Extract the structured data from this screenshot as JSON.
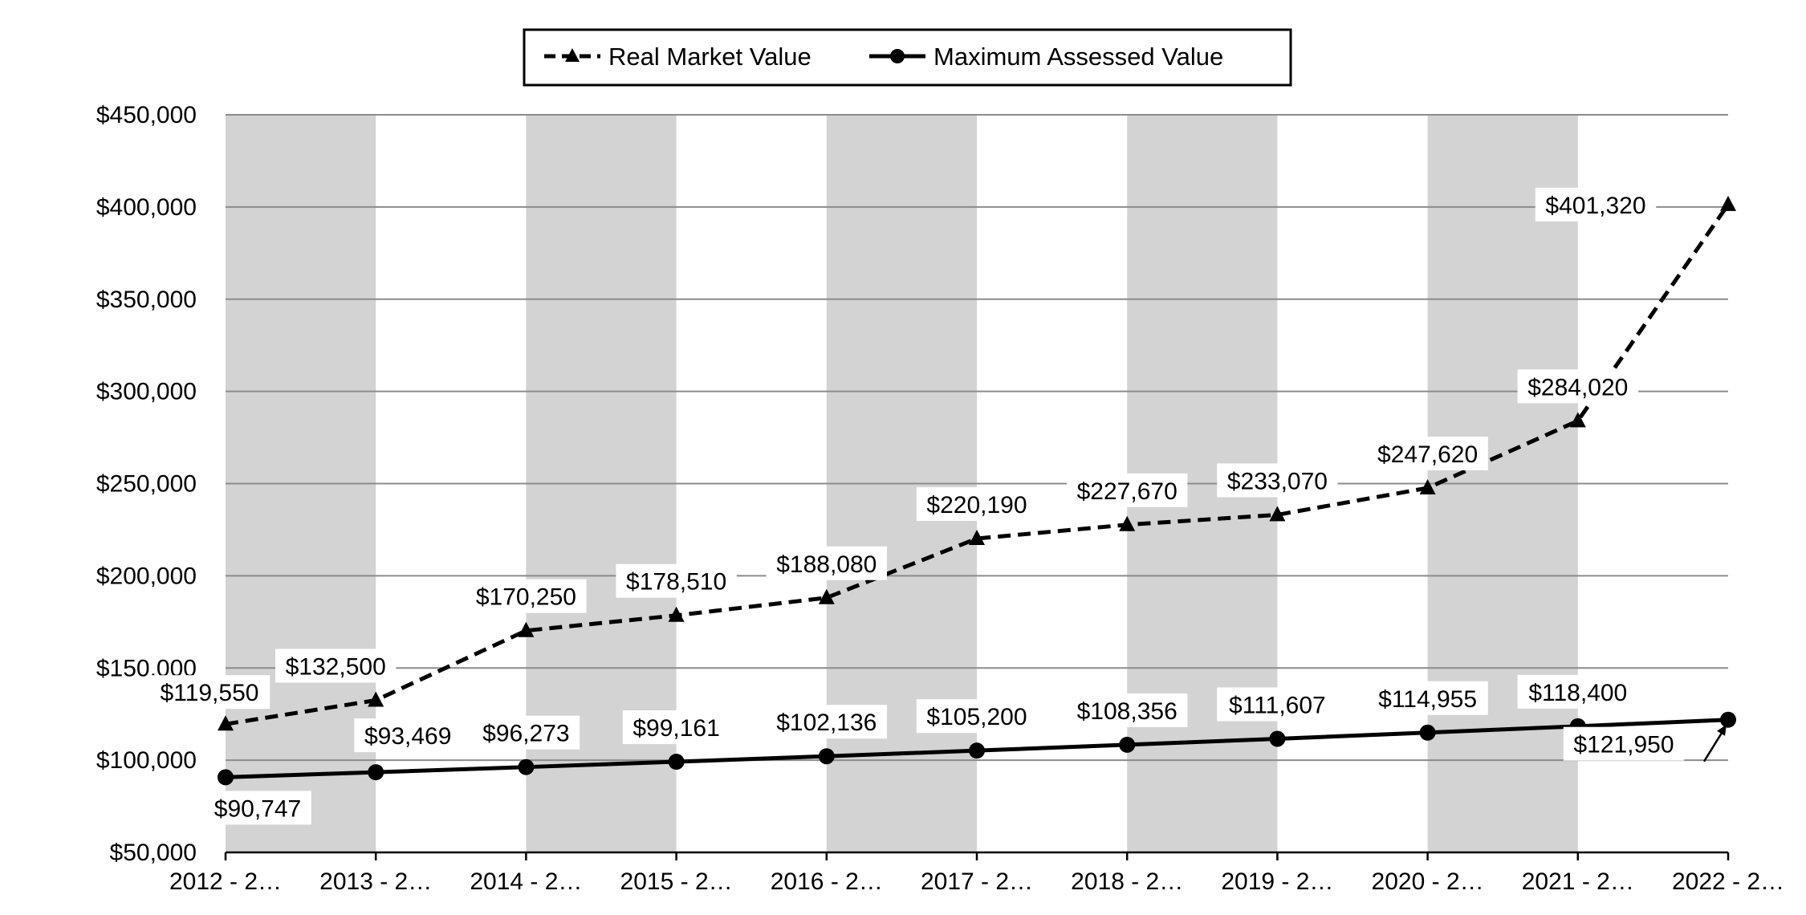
{
  "chart_data": {
    "type": "line",
    "title": "",
    "xlabel": "",
    "ylabel": "",
    "ylim": [
      50000,
      450000
    ],
    "yticks": [
      "$50,000",
      "$100,000",
      "$150,000",
      "$200,000",
      "$250,000",
      "$300,000",
      "$350,000",
      "$400,000",
      "$450,000"
    ],
    "ytick_values": [
      50000,
      100000,
      150000,
      200000,
      250000,
      300000,
      350000,
      400000,
      450000
    ],
    "categories": [
      "2012 - 2…",
      "2013 - 2…",
      "2014 - 2…",
      "2015 - 2…",
      "2016 - 2…",
      "2017 - 2…",
      "2018 - 2…",
      "2019 - 2…",
      "2020 - 2…",
      "2021 - 2…",
      "2022 - 2…"
    ],
    "grid": true,
    "legend_position": "top-center",
    "series": [
      {
        "name": "Real Market Value",
        "style": "dashed",
        "marker": "triangle",
        "color": "#000000",
        "values": [
          119550,
          132500,
          170250,
          178510,
          188080,
          220190,
          227670,
          233070,
          247620,
          284020,
          401320
        ],
        "labels": [
          "$119,550",
          "$132,500",
          "$170,250",
          "$178,510",
          "$188,080",
          "$220,190",
          "$227,670",
          "$233,070",
          "$247,620",
          "$284,020",
          "$401,320"
        ]
      },
      {
        "name": "Maximum Assessed Value",
        "style": "solid",
        "marker": "circle",
        "color": "#000000",
        "values": [
          90747,
          93469,
          96273,
          99161,
          102136,
          105200,
          108356,
          111607,
          114955,
          118400,
          121950
        ],
        "labels": [
          "$90,747",
          "$93,469",
          "$96,273",
          "$99,161",
          "$102,136",
          "$105,200",
          "$108,356",
          "$111,607",
          "$114,955",
          "$118,400",
          "$121,950"
        ]
      }
    ],
    "band_color": "#d3d3d3",
    "grid_color": "#8c8c8c"
  }
}
